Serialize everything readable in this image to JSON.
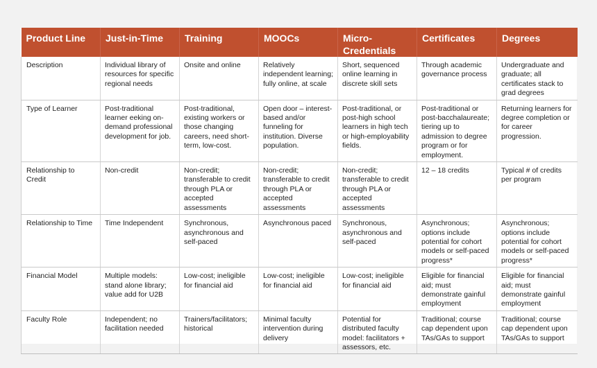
{
  "table": {
    "headers": [
      "Product Line",
      "Just-in-Time",
      "Training",
      "MOOCs",
      "Micro-\nCredentials",
      "Certificates",
      "Degrees"
    ],
    "rows": [
      [
        "Description",
        "Individual library of resources for specific regional needs",
        "Onsite and online",
        "Relatively independent learning; fully online, at scale",
        "Short, sequenced online learning in discrete skill sets",
        "Through academic governance process",
        "Undergraduate and graduate; all certificates stack to grad degrees"
      ],
      [
        "Type of Learner",
        "Post-traditional learner eeking on-demand professional development for job.",
        "Post-traditional, existing workers or those changing careers, need short-term, low-cost.",
        "Open door – interest-based and/or funneling for institution.  Diverse population.",
        "Post-traditional, or post-high school learners in high tech or high-employability fields.",
        "Post-traditional or post-bacchalaureate; tiering up to admission to degree program or for employment.",
        "Returning learners for degree completion or for career progression."
      ],
      [
        "Relationship to Credit",
        "Non-credit",
        "Non-credit; transferable to credit through PLA or accepted assessments",
        "Non-credit; transferable to credit through PLA or accepted assessments",
        "Non-credit; transferable to credit through PLA or accepted assessments",
        "12 – 18 credits",
        "Typical # of credits per program"
      ],
      [
        "Relationship to Time",
        "Time Independent",
        "Synchronous, asynchronous and self-paced",
        "Asynchronous paced",
        "Synchronous, asynchronous and self-paced",
        "Asynchronous; options include potential for cohort models or self-paced progress*",
        "Asynchronous; options include potential for cohort models or self-paced progress*"
      ],
      [
        "Financial Model",
        "Multiple models: stand alone library; value add for U2B",
        "Low-cost; ineligible for financial aid",
        "Low-cost; ineligible for financial aid",
        "Low-cost; ineligible for financial aid",
        "Eligible for financial aid; must demonstrate gainful employment",
        "Eligible for financial aid; must demonstrate gainful employment"
      ],
      [
        "Faculty Role",
        "Independent; no facilitation needed",
        "Trainers/facilitators; historical",
        "Minimal faculty intervention during delivery",
        "Potential for distributed faculty model: facilitators + assessors, etc.",
        "Traditional; course cap dependent upon TAs/GAs to support",
        "Traditional; course cap dependent upon TAs/GAs to support"
      ]
    ]
  },
  "colors": {
    "header_bg": "#c0502f",
    "header_text": "#ffffff",
    "page_bg": "#f2f2f2"
  }
}
